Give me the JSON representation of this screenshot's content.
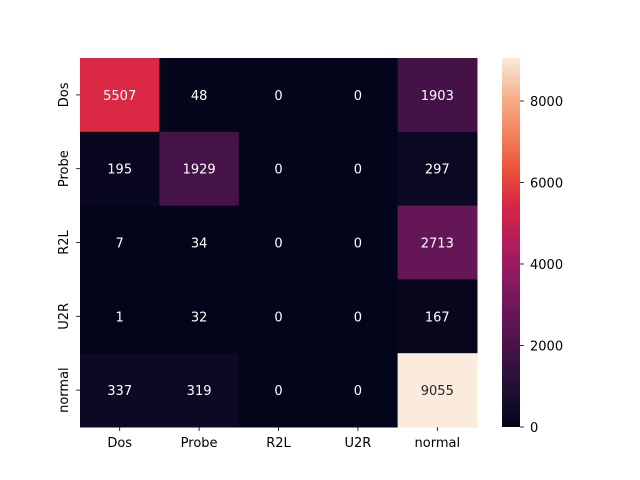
{
  "chart_data": {
    "type": "heatmap",
    "title": "",
    "xlabel": "",
    "ylabel": "",
    "x_categories": [
      "Dos",
      "Probe",
      "R2L",
      "U2R",
      "normal"
    ],
    "y_categories": [
      "Dos",
      "Probe",
      "R2L",
      "U2R",
      "normal"
    ],
    "values": [
      [
        5507,
        48,
        0,
        0,
        1903
      ],
      [
        195,
        1929,
        0,
        0,
        297
      ],
      [
        7,
        34,
        0,
        0,
        2713
      ],
      [
        1,
        32,
        0,
        0,
        167
      ],
      [
        337,
        319,
        0,
        0,
        9055
      ]
    ],
    "colorbar": {
      "min": 0,
      "max": 9055,
      "ticks": [
        0,
        2000,
        4000,
        6000,
        8000
      ],
      "tick_labels": [
        "0",
        "2000",
        "4000",
        "6000",
        "8000"
      ],
      "colormap": "rocket"
    },
    "grid": false,
    "legend": "colorbar-right"
  }
}
